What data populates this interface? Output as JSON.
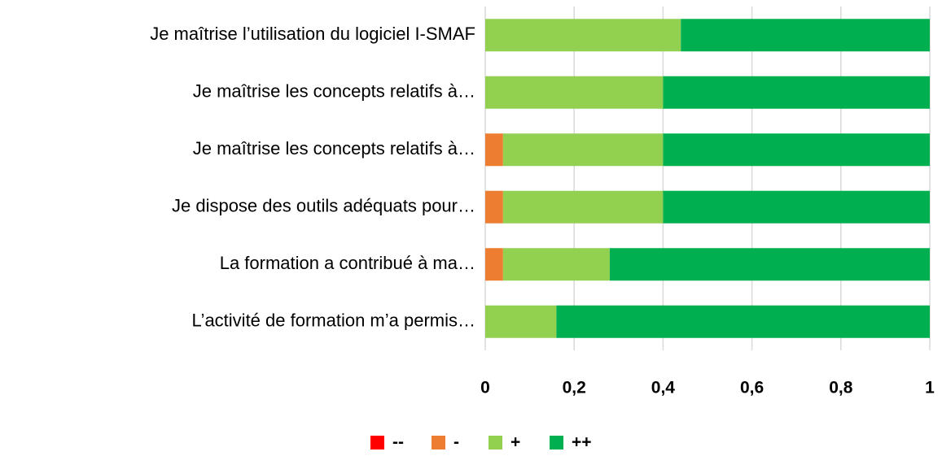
{
  "chart_data": {
    "type": "stacked_barh",
    "categories": [
      "Je maîtrise l’utilisation du logiciel I-SMAF",
      "Je maîtrise les concepts relatifs à…",
      "Je maîtrise les concepts relatifs à…",
      "Je dispose des outils adéquats pour…",
      "La formation a contribué à ma…",
      "L’activité de formation m’a permis…"
    ],
    "series": [
      {
        "name": "--",
        "color": "#ff0000",
        "values": [
          0,
          0,
          0,
          0,
          0,
          0
        ]
      },
      {
        "name": "-",
        "color": "#ed7d31",
        "values": [
          0,
          0,
          0.04,
          0.04,
          0.04,
          0
        ]
      },
      {
        "name": "+",
        "color": "#92d050",
        "values": [
          0.44,
          0.4,
          0.36,
          0.36,
          0.24,
          0.16
        ]
      },
      {
        "name": "++",
        "color": "#00b050",
        "values": [
          0.56,
          0.6,
          0.6,
          0.6,
          0.72,
          0.84
        ]
      }
    ],
    "xlim": [
      0,
      1
    ],
    "xticks": [
      0,
      {
        "value": 0.2,
        "label": "0,2"
      },
      {
        "value": 0.4,
        "label": "0,4"
      },
      {
        "value": 0.6,
        "label": "0,6"
      },
      {
        "value": 0.8,
        "label": "0,8"
      },
      1
    ],
    "grid": true,
    "legend": "bottom"
  }
}
